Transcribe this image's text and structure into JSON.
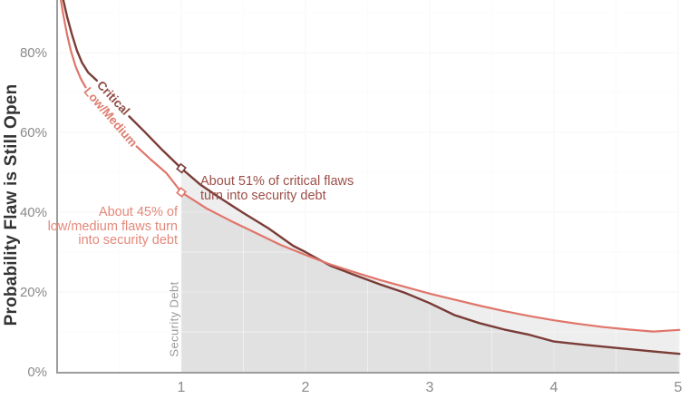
{
  "chart": {
    "y_axis_title": "Probability Flaw is Still Open",
    "curve_labels": {
      "critical": "Critical",
      "low_medium": "Low/Medium"
    },
    "annotations": {
      "critical": "About 51% of critical flaws\nturn into security debt",
      "low_medium": "About 45% of\nlow/medium flaws turn\ninto security debt",
      "security_debt": "Security Debt"
    },
    "colors": {
      "critical_line": "#7a3c37",
      "critical_text": "#9d4f48",
      "low_medium_line": "#e0756a",
      "low_medium_text": "#e5887a",
      "grid_major": "#ebebeb",
      "grid_minor": "#f5f5f5",
      "axis": "#9c9c9c",
      "tick_text": "#8a8a8a",
      "debt_fill": "#bbbbbb",
      "debt_label_text": "#999999"
    }
  },
  "chart_data": {
    "type": "line",
    "title": "",
    "xlabel": "",
    "ylabel": "Probability Flaw is Still Open",
    "xlim": [
      0,
      5.01
    ],
    "ylim": [
      0,
      93
    ],
    "x_ticks": [
      "1",
      "2",
      "3",
      "4",
      "5"
    ],
    "y_ticks": [
      {
        "value": 0,
        "label": "0%"
      },
      {
        "value": 20,
        "label": "20%"
      },
      {
        "value": 40,
        "label": "40%"
      },
      {
        "value": 60,
        "label": "60%"
      },
      {
        "value": 80,
        "label": "80%"
      }
    ],
    "grid": true,
    "legend_position": "inline-curve-labels",
    "security_debt_region": {
      "x_start": 1,
      "x_end": 5.01
    },
    "series": [
      {
        "name": "Critical",
        "color": "#7a3c37",
        "stroke_width": 2.4,
        "label_gap_x": [
          0.32,
          0.58
        ],
        "marker": {
          "x": 1,
          "y_pct": 51
        },
        "points": [
          [
            0.05,
            93.2
          ],
          [
            0.08,
            89
          ],
          [
            0.12,
            84.5
          ],
          [
            0.16,
            80.5
          ],
          [
            0.2,
            77.5
          ],
          [
            0.25,
            75
          ],
          [
            0.32,
            73
          ],
          [
            0.58,
            64
          ],
          [
            0.7,
            60.3
          ],
          [
            0.85,
            55.5
          ],
          [
            1.0,
            51
          ],
          [
            1.15,
            47
          ],
          [
            1.3,
            43.8
          ],
          [
            1.5,
            39.8
          ],
          [
            1.7,
            36
          ],
          [
            1.9,
            31.6
          ],
          [
            2.0,
            30
          ],
          [
            2.2,
            26.6
          ],
          [
            2.4,
            24.2
          ],
          [
            2.6,
            21.9
          ],
          [
            2.8,
            19.8
          ],
          [
            3.0,
            17.2
          ],
          [
            3.2,
            14.2
          ],
          [
            3.4,
            12.2
          ],
          [
            3.6,
            10.6
          ],
          [
            3.8,
            9.3
          ],
          [
            4.0,
            7.6
          ],
          [
            4.2,
            6.9
          ],
          [
            4.4,
            6.3
          ],
          [
            4.6,
            5.7
          ],
          [
            4.8,
            5.1
          ],
          [
            5.01,
            4.5
          ]
        ]
      },
      {
        "name": "Low/Medium",
        "color": "#e0756a",
        "stroke_width": 2.2,
        "label_gap_x": [
          0.23,
          0.64
        ],
        "marker": {
          "x": 1,
          "y_pct": 45
        },
        "points": [
          [
            0.03,
            93.2
          ],
          [
            0.05,
            89.5
          ],
          [
            0.08,
            84.5
          ],
          [
            0.11,
            80.5
          ],
          [
            0.15,
            76.5
          ],
          [
            0.19,
            73.5
          ],
          [
            0.23,
            71.3
          ],
          [
            0.64,
            56.5
          ],
          [
            0.75,
            53.3
          ],
          [
            0.88,
            49.8
          ],
          [
            1.0,
            45
          ],
          [
            1.2,
            41
          ],
          [
            1.4,
            37.8
          ],
          [
            1.6,
            34.8
          ],
          [
            1.8,
            31.8
          ],
          [
            2.0,
            29.3
          ],
          [
            2.2,
            26.9
          ],
          [
            2.4,
            24.9
          ],
          [
            2.6,
            23
          ],
          [
            2.8,
            21.3
          ],
          [
            3.0,
            19.6
          ],
          [
            3.2,
            18.1
          ],
          [
            3.4,
            16.6
          ],
          [
            3.6,
            15.2
          ],
          [
            3.8,
            14
          ],
          [
            4.0,
            12.9
          ],
          [
            4.2,
            12
          ],
          [
            4.4,
            11.2
          ],
          [
            4.6,
            10.6
          ],
          [
            4.8,
            10.1
          ],
          [
            5.01,
            10.5
          ]
        ]
      }
    ]
  }
}
